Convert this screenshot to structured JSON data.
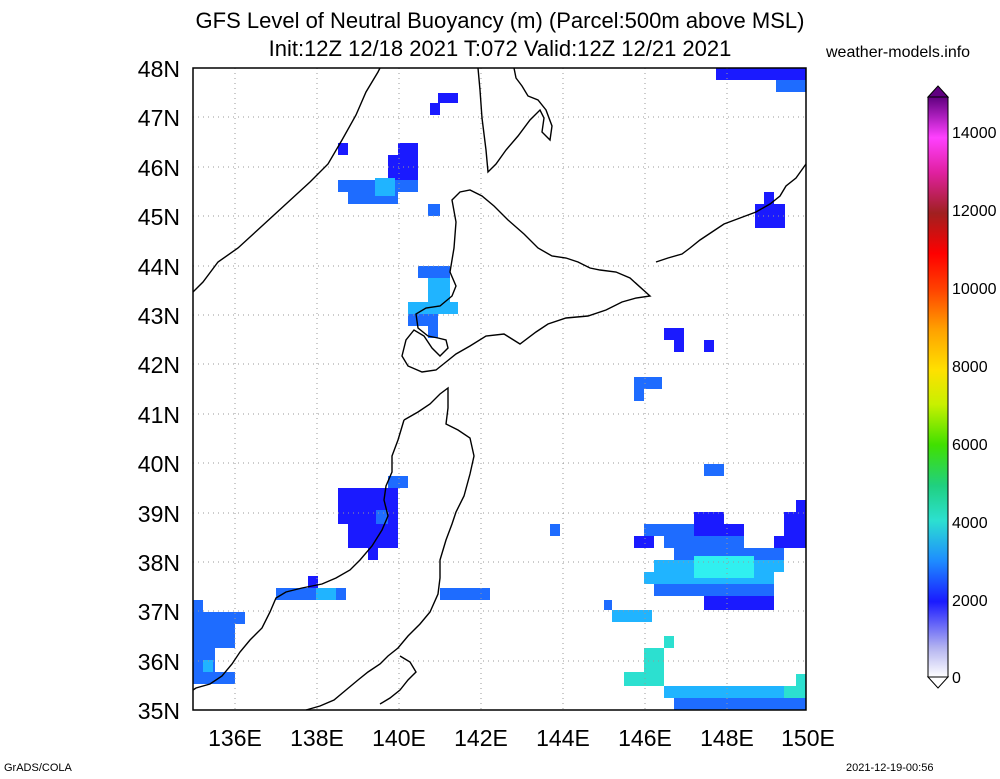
{
  "title_line1": "GFS Level of Neutral Buoyancy (m) (Parcel:500m above MSL)",
  "title_line2": "Init:12Z 12/18 2021 T:072 Valid:12Z 12/21 2021",
  "credit": "weather-models.info",
  "footer_left": "GrADS/COLA",
  "footer_right": "2021-12-19-00:56",
  "map": {
    "lon_range": [
      135,
      150
    ],
    "lat_range": [
      35,
      48
    ],
    "lat_labels": [
      "35N",
      "36N",
      "37N",
      "38N",
      "39N",
      "40N",
      "41N",
      "42N",
      "43N",
      "44N",
      "45N",
      "46N",
      "47N",
      "48N"
    ],
    "lon_labels": [
      "136E",
      "138E",
      "140E",
      "142E",
      "144E",
      "146E",
      "148E",
      "150E"
    ],
    "grid": true,
    "colors": {
      "low_blue": "#1a1aff",
      "mid_blue": "#1e6cff",
      "light_blue": "#20b4ff",
      "cyan": "#30f0f0",
      "aqua": "#2ce0d0"
    }
  },
  "colorbar": {
    "labels": [
      "0",
      "2000",
      "4000",
      "6000",
      "8000",
      "10000",
      "12000",
      "14000"
    ],
    "max": 15000
  }
}
